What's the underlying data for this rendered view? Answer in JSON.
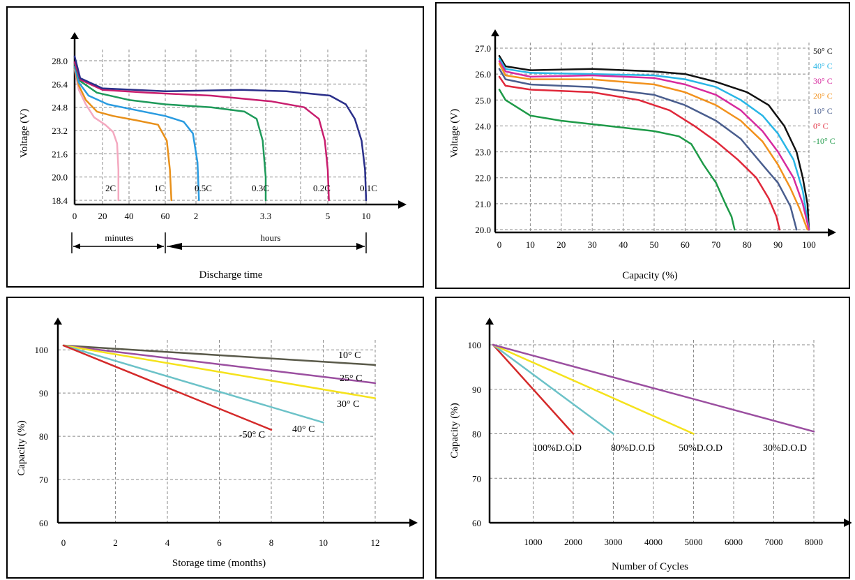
{
  "chart_data": [
    {
      "id": "discharge",
      "type": "line",
      "title": "",
      "xlabel": "Discharge time",
      "ylabel": "Voltage (V)",
      "ylim": [
        18.4,
        28.0
      ],
      "y_ticks": [
        "28.0",
        "26.4",
        "24.8",
        "23.2",
        "21.6",
        "20.0",
        "18.4"
      ],
      "x_ticks": [
        "0",
        "20",
        "40",
        "60",
        "2",
        "3.3",
        "5",
        "10"
      ],
      "x_segments": [
        "minutes",
        "hours"
      ],
      "grid": true,
      "series": [
        {
          "name": "2C",
          "color": "#f4a9c0",
          "points": [
            [
              0,
              27.4
            ],
            [
              0.15,
              26.0
            ],
            [
              0.4,
              25.0
            ],
            [
              0.7,
              24.1
            ],
            [
              1.1,
              23.6
            ],
            [
              1.4,
              23.1
            ],
            [
              1.55,
              22.3
            ],
            [
              1.6,
              20.5
            ],
            [
              1.6,
              18.4
            ]
          ]
        },
        {
          "name": "1C",
          "color": "#e8901a",
          "points": [
            [
              0,
              27.5
            ],
            [
              0.15,
              26.3
            ],
            [
              0.4,
              25.3
            ],
            [
              0.8,
              24.5
            ],
            [
              1.4,
              24.2
            ],
            [
              2.2,
              23.9
            ],
            [
              2.8,
              23.6
            ],
            [
              3.05,
              22.5
            ],
            [
              3.15,
              20.5
            ],
            [
              3.2,
              18.4
            ]
          ]
        },
        {
          "name": "0.5C",
          "color": "#2a9be0",
          "points": [
            [
              0,
              27.6
            ],
            [
              0.15,
              26.5
            ],
            [
              0.5,
              25.6
            ],
            [
              1.2,
              25.0
            ],
            [
              2.2,
              24.6
            ],
            [
              3.0,
              24.2
            ],
            [
              3.6,
              23.8
            ],
            [
              3.9,
              23.0
            ],
            [
              4.05,
              21.0
            ],
            [
              4.1,
              18.4
            ]
          ]
        },
        {
          "name": "0.3C",
          "color": "#1e9a5a",
          "points": [
            [
              0,
              27.8
            ],
            [
              0.2,
              26.6
            ],
            [
              0.8,
              25.8
            ],
            [
              2.0,
              25.3
            ],
            [
              3.0,
              25.0
            ],
            [
              4.5,
              24.8
            ],
            [
              5.6,
              24.5
            ],
            [
              6.0,
              24.0
            ],
            [
              6.2,
              22.5
            ],
            [
              6.3,
              20.0
            ],
            [
              6.3,
              18.4
            ]
          ]
        },
        {
          "name": "0.2C",
          "color": "#c81e6e",
          "points": [
            [
              0,
              27.9
            ],
            [
              0.2,
              26.7
            ],
            [
              1.0,
              26.0
            ],
            [
              2.5,
              25.8
            ],
            [
              4.5,
              25.6
            ],
            [
              6.5,
              25.2
            ],
            [
              7.6,
              24.8
            ],
            [
              8.1,
              24.0
            ],
            [
              8.3,
              22.5
            ],
            [
              8.4,
              20.5
            ],
            [
              8.45,
              18.4
            ]
          ]
        },
        {
          "name": "0.1C",
          "color": "#2a2f8a",
          "points": [
            [
              0,
              28.3
            ],
            [
              0.2,
              26.8
            ],
            [
              1.0,
              26.1
            ],
            [
              3.0,
              25.9
            ],
            [
              5.5,
              26.0
            ],
            [
              7.0,
              25.9
            ],
            [
              8.5,
              25.6
            ],
            [
              9.2,
              25.0
            ],
            [
              9.6,
              24.0
            ],
            [
              9.9,
              22.5
            ],
            [
              10.05,
              20.5
            ],
            [
              10.1,
              18.4
            ]
          ]
        }
      ]
    },
    {
      "id": "temperature",
      "type": "line",
      "title": "",
      "xlabel": "Capacity (%)",
      "ylabel": "Voltage (V)",
      "ylim": [
        20.0,
        27.0
      ],
      "xlim": [
        0,
        100
      ],
      "y_ticks": [
        "27.0",
        "26.0",
        "25.0",
        "24.0",
        "23.0",
        "22.0",
        "21.0",
        "20.0"
      ],
      "x_ticks": [
        "0",
        "10",
        "20",
        "30",
        "40",
        "50",
        "60",
        "70",
        "80",
        "90",
        "100"
      ],
      "grid": true,
      "series": [
        {
          "name": "50° C",
          "color": "#111111",
          "points": [
            [
              0,
              26.7
            ],
            [
              2,
              26.3
            ],
            [
              10,
              26.15
            ],
            [
              30,
              26.2
            ],
            [
              50,
              26.1
            ],
            [
              60,
              26.0
            ],
            [
              70,
              25.7
            ],
            [
              80,
              25.3
            ],
            [
              87,
              24.8
            ],
            [
              92,
              24.0
            ],
            [
              96,
              23.0
            ],
            [
              98,
              22.0
            ],
            [
              99.5,
              21.0
            ],
            [
              100,
              20.0
            ]
          ]
        },
        {
          "name": "40° C",
          "color": "#29b6e6",
          "points": [
            [
              0,
              26.6
            ],
            [
              2,
              26.2
            ],
            [
              10,
              26.05
            ],
            [
              30,
              26.0
            ],
            [
              50,
              25.95
            ],
            [
              60,
              25.8
            ],
            [
              70,
              25.5
            ],
            [
              78,
              25.0
            ],
            [
              85,
              24.4
            ],
            [
              90,
              23.7
            ],
            [
              95,
              22.7
            ],
            [
              98,
              21.5
            ],
            [
              100,
              20.0
            ]
          ]
        },
        {
          "name": "30° C",
          "color": "#d72a9e",
          "points": [
            [
              0,
              26.5
            ],
            [
              2,
              26.1
            ],
            [
              10,
              25.9
            ],
            [
              30,
              25.95
            ],
            [
              50,
              25.85
            ],
            [
              60,
              25.6
            ],
            [
              70,
              25.2
            ],
            [
              78,
              24.6
            ],
            [
              85,
              23.8
            ],
            [
              90,
              23.0
            ],
            [
              95,
              22.0
            ],
            [
              98,
              21.0
            ],
            [
              100,
              20.0
            ]
          ]
        },
        {
          "name": "20° C",
          "color": "#f2921d",
          "points": [
            [
              0,
              26.4
            ],
            [
              2,
              25.95
            ],
            [
              10,
              25.8
            ],
            [
              30,
              25.8
            ],
            [
              50,
              25.6
            ],
            [
              60,
              25.3
            ],
            [
              70,
              24.8
            ],
            [
              78,
              24.2
            ],
            [
              85,
              23.4
            ],
            [
              90,
              22.5
            ],
            [
              94,
              21.6
            ],
            [
              97,
              20.8
            ],
            [
              99.5,
              20.0
            ]
          ]
        },
        {
          "name": "10° C",
          "color": "#4a5e8e",
          "points": [
            [
              0,
              26.2
            ],
            [
              2,
              25.8
            ],
            [
              10,
              25.6
            ],
            [
              30,
              25.5
            ],
            [
              50,
              25.2
            ],
            [
              60,
              24.8
            ],
            [
              70,
              24.2
            ],
            [
              78,
              23.5
            ],
            [
              85,
              22.5
            ],
            [
              90,
              21.8
            ],
            [
              94,
              20.9
            ],
            [
              96,
              20.0
            ]
          ]
        },
        {
          "name": "0° C",
          "color": "#e0283a",
          "points": [
            [
              0,
              25.9
            ],
            [
              2,
              25.55
            ],
            [
              10,
              25.4
            ],
            [
              30,
              25.3
            ],
            [
              45,
              25.0
            ],
            [
              55,
              24.6
            ],
            [
              63,
              24.0
            ],
            [
              70,
              23.4
            ],
            [
              77,
              22.7
            ],
            [
              83,
              22.0
            ],
            [
              87,
              21.2
            ],
            [
              89.5,
              20.5
            ],
            [
              90.5,
              20.0
            ]
          ]
        },
        {
          "name": "-10° C",
          "color": "#1e9a48",
          "points": [
            [
              0,
              25.4
            ],
            [
              2,
              25.0
            ],
            [
              10,
              24.4
            ],
            [
              20,
              24.2
            ],
            [
              35,
              24.0
            ],
            [
              50,
              23.8
            ],
            [
              58,
              23.6
            ],
            [
              62,
              23.3
            ],
            [
              66,
              22.5
            ],
            [
              70,
              21.8
            ],
            [
              73,
              21.0
            ],
            [
              75,
              20.5
            ],
            [
              76,
              20.0
            ]
          ]
        }
      ]
    },
    {
      "id": "storage",
      "type": "line",
      "title": "",
      "xlabel": "Storage time (months)",
      "ylabel": "Capacity (%)",
      "xlim": [
        0,
        12
      ],
      "ylim": [
        60,
        100
      ],
      "y_ticks": [
        "100",
        "90",
        "80",
        "70",
        "60"
      ],
      "x_ticks": [
        "0",
        "2",
        "4",
        "6",
        "8",
        "10",
        "12"
      ],
      "grid": true,
      "series": [
        {
          "name": "10° C",
          "color": "#5a5a4a",
          "points": [
            [
              0,
              101
            ],
            [
              12,
              96.5
            ]
          ]
        },
        {
          "name": "25° C",
          "color": "#9b4fa0",
          "points": [
            [
              0,
              101
            ],
            [
              12,
              92.3
            ]
          ]
        },
        {
          "name": "30° C",
          "color": "#f5e21c",
          "points": [
            [
              0,
              101
            ],
            [
              12,
              88.8
            ]
          ]
        },
        {
          "name": "40° C",
          "color": "#6cc2c8",
          "points": [
            [
              0,
              101
            ],
            [
              10,
              83.2
            ]
          ]
        },
        {
          "name": "-50° C",
          "color": "#d42a2a",
          "points": [
            [
              0,
              101
            ],
            [
              8,
              81.5
            ]
          ]
        }
      ]
    },
    {
      "id": "cycles",
      "type": "line",
      "title": "",
      "xlabel": "Number of Cycles",
      "ylabel": "Capacity (%)",
      "xlim": [
        0,
        8000
      ],
      "ylim": [
        60,
        100
      ],
      "y_ticks": [
        "100",
        "90",
        "80",
        "70",
        "60"
      ],
      "x_ticks": [
        "1000",
        "2000",
        "3000",
        "4000",
        "5000",
        "6000",
        "7000",
        "8000"
      ],
      "grid": true,
      "series": [
        {
          "name": "100%D.O.D",
          "color": "#d42a2a",
          "points": [
            [
              0,
              100
            ],
            [
              2000,
              80
            ]
          ]
        },
        {
          "name": "80%D.O.D",
          "color": "#6cc2c8",
          "points": [
            [
              0,
              100
            ],
            [
              3000,
              80
            ]
          ]
        },
        {
          "name": "50%D.O.D",
          "color": "#f5e21c",
          "points": [
            [
              0,
              100
            ],
            [
              5000,
              80
            ]
          ]
        },
        {
          "name": "30%D.O.D",
          "color": "#9b4fa0",
          "points": [
            [
              0,
              100
            ],
            [
              8000,
              80.5
            ]
          ]
        }
      ]
    }
  ]
}
